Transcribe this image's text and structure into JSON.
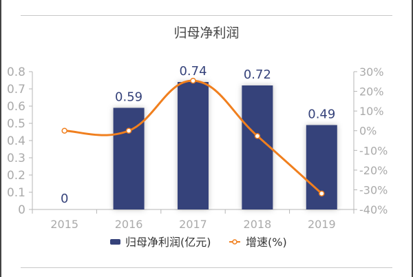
{
  "chart_data": {
    "type": "bar+line",
    "title": "归母净利润",
    "categories": [
      "2015",
      "2016",
      "2017",
      "2018",
      "2019"
    ],
    "series": [
      {
        "name": "归母净利润(亿元)",
        "type": "bar",
        "axis": "left",
        "values": [
          0,
          0.59,
          0.74,
          0.72,
          0.49
        ],
        "data_labels": [
          "0",
          "0.59",
          "0.74",
          "0.72",
          "0.49"
        ],
        "color": "#35427a"
      },
      {
        "name": "增速(%)",
        "type": "line",
        "smooth": true,
        "axis": "right",
        "values": [
          0,
          0,
          25.4,
          -2.7,
          -31.9
        ],
        "color": "#f07f1e"
      }
    ],
    "y_left": {
      "ylim": [
        0,
        0.8
      ],
      "ticks": [
        "0",
        "0.1",
        "0.2",
        "0.3",
        "0.4",
        "0.5",
        "0.6",
        "0.7",
        "0.8"
      ]
    },
    "y_right": {
      "ylim": [
        -40,
        30
      ],
      "ticks": [
        "-40%",
        "-30%",
        "-20%",
        "-10%",
        "0%",
        "10%",
        "20%",
        "30%"
      ]
    },
    "grid": false,
    "legend": "bottom"
  }
}
